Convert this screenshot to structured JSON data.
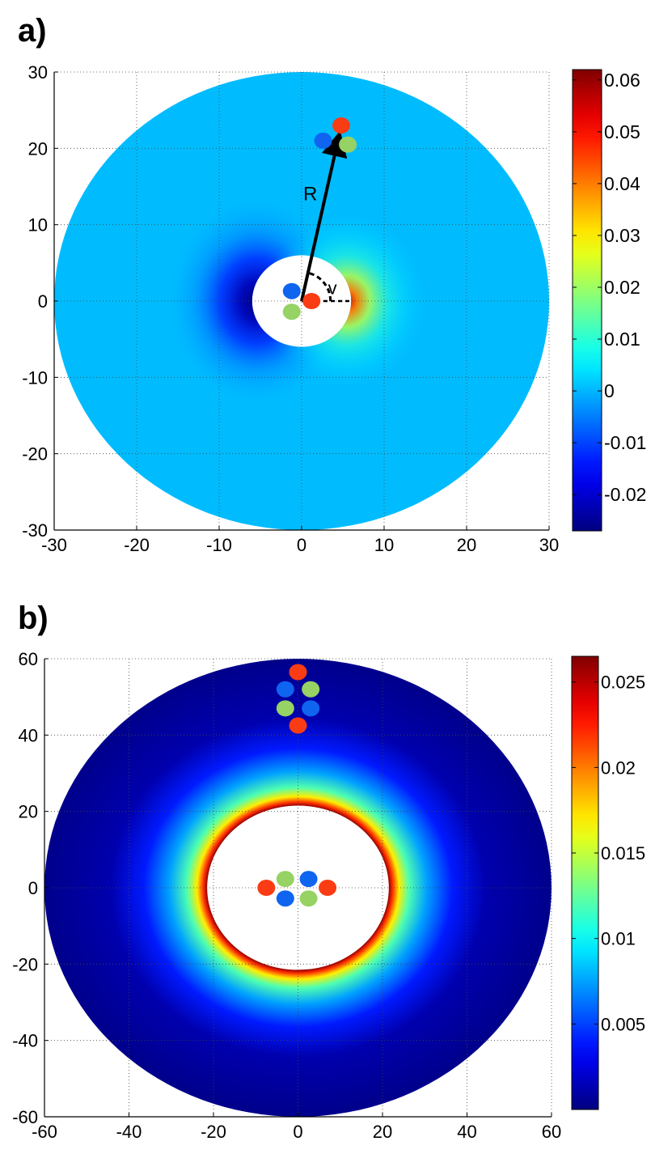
{
  "panels": [
    {
      "label": "a)"
    },
    {
      "label": "b)"
    }
  ],
  "chart_data": [
    {
      "type": "heatmap",
      "title": "",
      "xlabel": "",
      "ylabel": "",
      "xlim": [
        -30,
        30
      ],
      "ylim": [
        -30,
        30
      ],
      "xticks": [
        -30,
        -20,
        -10,
        0,
        10,
        20,
        30
      ],
      "yticks": [
        30,
        20,
        10,
        0,
        -10,
        -20,
        -30
      ],
      "grid": true,
      "domain": {
        "inner_radius": 6,
        "outer_radius": 30
      },
      "field": "dipole-like: negative minimum on the left edge of the hole, positive maximum on the right edge, near zero far away",
      "colorbar": {
        "range": [
          -0.027,
          0.062
        ],
        "ticks": [
          0.06,
          0.05,
          0.04,
          0.03,
          0.02,
          0.01,
          0,
          -0.01,
          -0.02
        ],
        "tick_labels": [
          "0.06",
          "0.05",
          "0.04",
          "0.03",
          "0.02",
          "0.01",
          "0",
          "-0.01",
          "-0.02"
        ],
        "colormap": "jet"
      },
      "annotations": {
        "arrow_label": "R",
        "angle_label": "v",
        "arrow_from": [
          0,
          0
        ],
        "arrow_to": [
          4.5,
          21.5
        ]
      },
      "molecules": [
        {
          "x": -1.2,
          "y": 1.3,
          "color": "#0f64f0"
        },
        {
          "x": 1.2,
          "y": 0.0,
          "color": "#fa3c14"
        },
        {
          "x": -1.2,
          "y": -1.4,
          "color": "#96d264"
        },
        {
          "x": 2.6,
          "y": 21.0,
          "color": "#0f64f0"
        },
        {
          "x": 4.8,
          "y": 23.0,
          "color": "#fa3c14"
        },
        {
          "x": 5.6,
          "y": 20.5,
          "color": "#96d264"
        }
      ]
    },
    {
      "type": "heatmap",
      "title": "",
      "xlabel": "",
      "ylabel": "",
      "xlim": [
        -60,
        60
      ],
      "ylim": [
        -60,
        60
      ],
      "xticks": [
        -60,
        -40,
        -20,
        0,
        20,
        40,
        60
      ],
      "yticks": [
        60,
        40,
        20,
        0,
        -20,
        -40,
        -60
      ],
      "grid": true,
      "domain": {
        "inner_radius": 21.5,
        "outer_radius": 60
      },
      "field": "radially symmetric: maximum at the inner edge of the hole, decaying outward",
      "colorbar": {
        "range": [
          0,
          0.0265
        ],
        "ticks": [
          0.025,
          0.02,
          0.015,
          0.01,
          0.005
        ],
        "tick_labels": [
          "0.025",
          "0.02",
          "0.015",
          "0.01",
          "0.005"
        ],
        "colormap": "jet"
      },
      "molecules": [
        {
          "x": 0.0,
          "y": 56.5,
          "color": "#fa3c14"
        },
        {
          "x": -3.0,
          "y": 52.0,
          "color": "#0f64f0"
        },
        {
          "x": 3.0,
          "y": 52.0,
          "color": "#96d264"
        },
        {
          "x": -3.0,
          "y": 47.0,
          "color": "#96d264"
        },
        {
          "x": 3.0,
          "y": 47.0,
          "color": "#0f64f0"
        },
        {
          "x": 0.0,
          "y": 42.5,
          "color": "#fa3c14"
        },
        {
          "x": -7.5,
          "y": 0.0,
          "color": "#fa3c14"
        },
        {
          "x": -3.0,
          "y": 2.3,
          "color": "#96d264"
        },
        {
          "x": 2.5,
          "y": 2.3,
          "color": "#0f64f0"
        },
        {
          "x": -3.0,
          "y": -2.8,
          "color": "#0f64f0"
        },
        {
          "x": 2.5,
          "y": -2.8,
          "color": "#96d264"
        },
        {
          "x": 7.0,
          "y": 0.0,
          "color": "#fa3c14"
        }
      ]
    }
  ]
}
